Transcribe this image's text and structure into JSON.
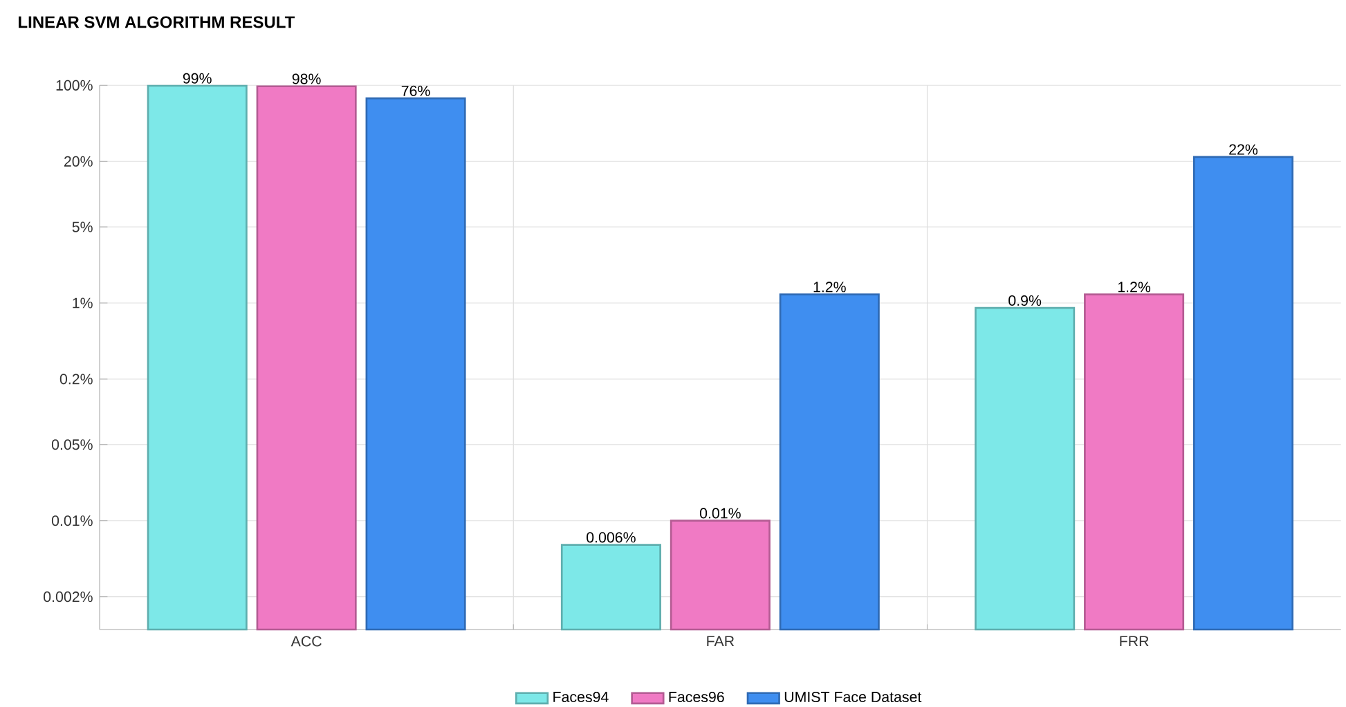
{
  "chart_data": {
    "type": "bar",
    "title": "LINEAR SVM ALGORITHM RESULT",
    "categories": [
      "ACC",
      "FAR",
      "FRR"
    ],
    "series": [
      {
        "name": "Faces94",
        "color": "#7de8e8",
        "values": [
          99,
          0.006,
          0.9
        ],
        "value_labels": [
          "99%",
          "0.006%",
          "0.9%"
        ]
      },
      {
        "name": "Faces96",
        "color": "#f07ac4",
        "values": [
          98,
          0.01,
          1.2
        ],
        "value_labels": [
          "98%",
          "0.01%",
          "1.2%"
        ]
      },
      {
        "name": "UMIST Face Dataset",
        "color": "#3f8ef0",
        "values": [
          76,
          1.2,
          22
        ],
        "value_labels": [
          "76%",
          "1.2%",
          "22%"
        ]
      }
    ],
    "log": true,
    "ylim": [
      0.001,
      100
    ],
    "yticks": [
      {
        "value": 100,
        "label": "100%"
      },
      {
        "value": 20,
        "label": "20%"
      },
      {
        "value": 5,
        "label": "5%"
      },
      {
        "value": 1,
        "label": "1%"
      },
      {
        "value": 0.2,
        "label": "0.2%"
      },
      {
        "value": 0.05,
        "label": "0.05%"
      },
      {
        "value": 0.01,
        "label": "0.01%"
      },
      {
        "value": 0.002,
        "label": "0.002%"
      }
    ],
    "grid": true,
    "legend": "bottom"
  }
}
